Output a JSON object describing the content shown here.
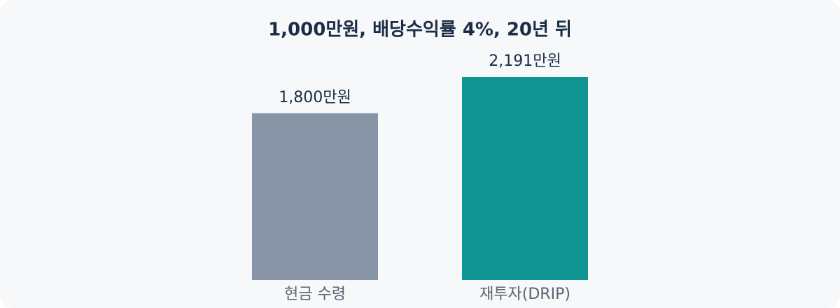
{
  "chart_data": {
    "type": "bar",
    "title": "1,000만원, 배당수익률 4%, 20년 뒤",
    "categories": [
      "현금 수령",
      "재투자(DRIP)"
    ],
    "values": [
      1800,
      2191
    ],
    "value_labels": [
      "1,800만원",
      "2,191만원"
    ],
    "colors": [
      "#8795a6",
      "#109594"
    ]
  }
}
